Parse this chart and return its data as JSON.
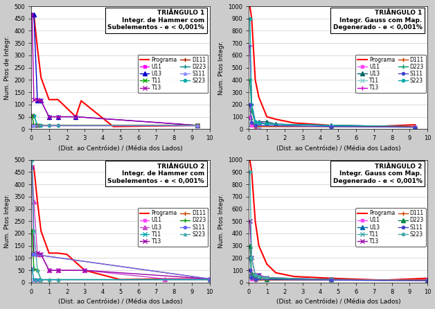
{
  "subplots": [
    {
      "title": "TRIÂNGULO 1\nIntegr. de Hammer com\nSubelementos - e < 0,001%",
      "ylabel": "Num. Ptos de Integr.",
      "xlabel": "(Dist. ao Centróide) / (Média dos Lados)",
      "ylim": [
        0,
        500
      ],
      "yticks": [
        0,
        50,
        100,
        150,
        200,
        250,
        300,
        350,
        400,
        450,
        500
      ],
      "xlim": [
        0,
        10
      ],
      "xticks": [
        0,
        1,
        2,
        3,
        4,
        5,
        6,
        7,
        8,
        9,
        10
      ],
      "series": [
        {
          "name": "Programa",
          "x": [
            0.05,
            0.15,
            0.35,
            0.55,
            1.0,
            1.5,
            2.5,
            2.8,
            4.6,
            9.3
          ],
          "y": [
            465,
            465,
            330,
            210,
            120,
            120,
            50,
            115,
            10,
            15
          ],
          "color": "#ff0000",
          "marker": null,
          "ms": 3,
          "lw": 1.5
        },
        {
          "name": "U13",
          "x": [
            0.05,
            0.15,
            0.35,
            0.55,
            1.0,
            1.5,
            2.5,
            9.3
          ],
          "y": [
            465,
            465,
            115,
            115,
            50,
            50,
            50,
            15
          ],
          "color": "#0000cc",
          "marker": "^",
          "ms": 4,
          "lw": 1.0
        },
        {
          "name": "T13",
          "x": [
            0.05,
            0.15,
            0.35,
            0.55,
            1.0,
            1.5,
            2.5,
            9.3
          ],
          "y": [
            465,
            120,
            120,
            115,
            50,
            50,
            50,
            15
          ],
          "color": "#aa00aa",
          "marker": "x",
          "ms": 4,
          "lw": 1.0
        },
        {
          "name": "D223",
          "x": [
            0.05,
            0.15,
            0.35,
            0.55,
            1.0,
            1.5,
            9.3
          ],
          "y": [
            55,
            55,
            15,
            15,
            15,
            15,
            15
          ],
          "color": "#008888",
          "marker": "+",
          "ms": 5,
          "lw": 1.0
        },
        {
          "name": "S223",
          "x": [
            0.05,
            0.15,
            0.35,
            0.55,
            1.0,
            1.5,
            9.3
          ],
          "y": [
            55,
            55,
            15,
            15,
            15,
            15,
            15
          ],
          "color": "#00aaaa",
          "marker": "o",
          "ms": 3,
          "lw": 1.0
        },
        {
          "name": "U11",
          "x": [
            0.05,
            0.15,
            0.35,
            9.3
          ],
          "y": [
            55,
            15,
            15,
            15
          ],
          "color": "#ff00ff",
          "marker": "s",
          "ms": 3,
          "lw": 1.0
        },
        {
          "name": "T11",
          "x": [
            0.05,
            0.15,
            0.35,
            9.3
          ],
          "y": [
            55,
            15,
            15,
            15
          ],
          "color": "#00aa00",
          "marker": "x",
          "ms": 4,
          "lw": 1.0
        },
        {
          "name": "D111",
          "x": [
            0.05,
            0.15,
            9.3
          ],
          "y": [
            15,
            15,
            15
          ],
          "color": "#aa2200",
          "marker": "+",
          "ms": 5,
          "lw": 1.0
        },
        {
          "name": "S111",
          "x": [
            0.05,
            0.15,
            9.3
          ],
          "y": [
            15,
            15,
            15
          ],
          "color": "#8888ff",
          "marker": "^",
          "ms": 3,
          "lw": 1.0
        }
      ],
      "legend_order": [
        "Programa",
        "U11",
        "U13",
        "T11",
        "T13",
        "D111",
        "D223",
        "S111",
        "S223"
      ]
    },
    {
      "title": "TRIÂNGULO 1\nIntegr. Gauss com Map.\nDegenerado - e < 0,001%",
      "ylabel": "Num. Ptos Integr.",
      "xlabel": "(Dist. ao Centróide) / (Média dos Lados)",
      "ylim": [
        0,
        1000
      ],
      "yticks": [
        0,
        100,
        200,
        300,
        400,
        500,
        600,
        700,
        800,
        900,
        1000
      ],
      "xlim": [
        0,
        10
      ],
      "xticks": [
        0,
        1,
        2,
        3,
        4,
        5,
        6,
        7,
        8,
        9,
        10
      ],
      "series": [
        {
          "name": "Programa",
          "x": [
            0.05,
            0.15,
            0.35,
            0.55,
            1.0,
            1.5,
            2.5,
            4.6,
            7.0,
            9.3
          ],
          "y": [
            1000,
            900,
            400,
            260,
            100,
            80,
            50,
            30,
            20,
            35
          ],
          "color": "#ff0000",
          "marker": null,
          "ms": 3,
          "lw": 1.5
        },
        {
          "name": "U13",
          "x": [
            0.05,
            0.15,
            0.35,
            0.55,
            1.0,
            1.5,
            4.6,
            9.3
          ],
          "y": [
            100,
            40,
            40,
            60,
            60,
            40,
            30,
            20
          ],
          "color": "#006666",
          "marker": "^",
          "ms": 4,
          "lw": 1.0
        },
        {
          "name": "T13",
          "x": [
            0.05,
            0.15,
            0.35,
            0.55,
            1.0,
            4.6,
            9.3
          ],
          "y": [
            680,
            200,
            60,
            60,
            40,
            30,
            20
          ],
          "color": "#cc00cc",
          "marker": "+",
          "ms": 5,
          "lw": 1.0
        },
        {
          "name": "D223",
          "x": [
            0.05,
            0.15,
            0.35,
            0.55,
            1.0,
            4.6,
            9.3
          ],
          "y": [
            400,
            150,
            50,
            50,
            40,
            30,
            20
          ],
          "color": "#009966",
          "marker": "+",
          "ms": 5,
          "lw": 1.0
        },
        {
          "name": "S223",
          "x": [
            0.05,
            0.15,
            0.35,
            0.55,
            1.0,
            4.6,
            9.3
          ],
          "y": [
            900,
            200,
            60,
            50,
            40,
            30,
            20
          ],
          "color": "#00aaaa",
          "marker": "o",
          "ms": 3,
          "lw": 1.0
        },
        {
          "name": "U11",
          "x": [
            0.05,
            0.15,
            0.35,
            0.55,
            4.6,
            9.3
          ],
          "y": [
            100,
            30,
            20,
            20,
            20,
            20
          ],
          "color": "#ff44ff",
          "marker": "s",
          "ms": 3,
          "lw": 1.0
        },
        {
          "name": "T11",
          "x": [
            0.05,
            0.15,
            0.35,
            0.55,
            4.6,
            9.3
          ],
          "y": [
            200,
            60,
            30,
            20,
            20,
            15
          ],
          "color": "#88cccc",
          "marker": "x",
          "ms": 4,
          "lw": 1.0
        },
        {
          "name": "D111",
          "x": [
            0.05,
            0.15,
            0.35,
            4.6,
            9.3
          ],
          "y": [
            200,
            50,
            20,
            20,
            20
          ],
          "color": "#cc4400",
          "marker": "+",
          "ms": 5,
          "lw": 1.0
        },
        {
          "name": "S111",
          "x": [
            0.05,
            0.15,
            0.35,
            4.6,
            9.3
          ],
          "y": [
            200,
            50,
            30,
            20,
            15
          ],
          "color": "#4444cc",
          "marker": "o",
          "ms": 3,
          "lw": 1.0
        }
      ],
      "legend_order": [
        "Programa",
        "U11",
        "U13",
        "T11",
        "T13",
        "D111",
        "D223",
        "S111",
        "S223"
      ]
    },
    {
      "title": "TRIÂNGULO 2\nIntegr. de Hammer com\nSubelementos - e < 0,001%",
      "ylabel": "Num. Ptos Integr.",
      "xlabel": "(Dist. ao Centróide) / (Média dos Lados)",
      "ylim": [
        0,
        500
      ],
      "yticks": [
        0,
        50,
        100,
        150,
        200,
        250,
        300,
        350,
        400,
        450,
        500
      ],
      "xlim": [
        0,
        10
      ],
      "xticks": [
        0,
        1,
        2,
        3,
        4,
        5,
        6,
        7,
        8,
        9,
        10
      ],
      "series": [
        {
          "name": "Programa",
          "x": [
            0.05,
            0.15,
            0.35,
            0.55,
            1.0,
            1.5,
            2.0,
            3.0,
            5.0,
            7.5,
            10.0
          ],
          "y": [
            470,
            470,
            330,
            210,
            120,
            120,
            115,
            50,
            12,
            15,
            15
          ],
          "color": "#ff0000",
          "marker": null,
          "ms": 3,
          "lw": 1.5
        },
        {
          "name": "U13",
          "x": [
            0.05,
            0.15,
            0.35,
            0.55,
            1.0,
            1.5,
            3.0,
            7.5,
            10.0
          ],
          "y": [
            470,
            330,
            115,
            115,
            50,
            50,
            50,
            15,
            15
          ],
          "color": "#cc44cc",
          "marker": "^",
          "ms": 4,
          "lw": 1.0
        },
        {
          "name": "T13",
          "x": [
            0.05,
            0.15,
            0.35,
            0.55,
            1.0,
            1.5,
            3.0,
            10.0
          ],
          "y": [
            470,
            120,
            120,
            115,
            50,
            50,
            50,
            15
          ],
          "color": "#9900aa",
          "marker": "x",
          "ms": 4,
          "lw": 1.0
        },
        {
          "name": "D223",
          "x": [
            0.05,
            0.15,
            0.35,
            0.55,
            1.0,
            1.5,
            10.0
          ],
          "y": [
            210,
            55,
            50,
            12,
            12,
            12,
            12
          ],
          "color": "#009900",
          "marker": "+",
          "ms": 5,
          "lw": 1.0
        },
        {
          "name": "S223",
          "x": [
            0.05,
            0.15,
            0.35,
            0.55,
            1.0,
            1.5,
            10.0
          ],
          "y": [
            500,
            210,
            50,
            12,
            12,
            12,
            12
          ],
          "color": "#44aaaa",
          "marker": "^",
          "ms": 3,
          "lw": 1.0
        },
        {
          "name": "U11",
          "x": [
            0.05,
            0.15,
            0.35,
            10.0
          ],
          "y": [
            55,
            12,
            12,
            12
          ],
          "color": "#ff44ff",
          "ms": 3,
          "marker": "s",
          "lw": 1.0
        },
        {
          "name": "T11",
          "x": [
            0.05,
            0.15,
            0.35,
            10.0
          ],
          "y": [
            55,
            12,
            12,
            12
          ],
          "color": "#00aaaa",
          "marker": "x",
          "ms": 4,
          "lw": 1.0
        },
        {
          "name": "D111",
          "x": [
            0.05,
            0.15,
            10.0
          ],
          "y": [
            115,
            115,
            15
          ],
          "color": "#cc4400",
          "marker": "+",
          "ms": 5,
          "lw": 1.0
        },
        {
          "name": "S111",
          "x": [
            0.05,
            0.15,
            10.0
          ],
          "y": [
            115,
            115,
            15
          ],
          "color": "#6666ff",
          "marker": "o",
          "ms": 3,
          "lw": 1.0
        }
      ],
      "legend_order": [
        "Programa",
        "U11",
        "U13",
        "T11",
        "T13",
        "D111",
        "D223",
        "S111",
        "S223"
      ]
    },
    {
      "title": "TRIÂNGULO 2\nIntegr. Gauss com Map.\nDegenerado - e < 0,001%",
      "ylabel": "Num. Ptos Integr.",
      "xlabel": "(Dist. ao Centróide) / (Média dos Lados)",
      "ylim": [
        0,
        1000
      ],
      "yticks": [
        0,
        100,
        200,
        300,
        400,
        500,
        600,
        700,
        800,
        900,
        1000
      ],
      "xlim": [
        0,
        10
      ],
      "xticks": [
        0,
        1,
        2,
        3,
        4,
        5,
        6,
        7,
        8,
        9,
        10
      ],
      "series": [
        {
          "name": "Programa",
          "x": [
            0.05,
            0.15,
            0.35,
            0.55,
            1.0,
            1.5,
            2.5,
            4.6,
            7.5,
            10.0
          ],
          "y": [
            1000,
            900,
            500,
            300,
            150,
            80,
            50,
            35,
            20,
            35
          ],
          "color": "#ff0000",
          "marker": null,
          "ms": 3,
          "lw": 1.5
        },
        {
          "name": "U13",
          "x": [
            0.05,
            0.15,
            0.35,
            0.55,
            1.0,
            4.6,
            10.0
          ],
          "y": [
            200,
            60,
            60,
            60,
            40,
            25,
            20
          ],
          "color": "#0066aa",
          "marker": "^",
          "ms": 4,
          "lw": 1.0
        },
        {
          "name": "T13",
          "x": [
            0.05,
            0.15,
            0.35,
            0.55,
            1.0,
            4.6,
            10.0
          ],
          "y": [
            500,
            200,
            60,
            60,
            40,
            25,
            20
          ],
          "color": "#9900aa",
          "marker": "x",
          "ms": 4,
          "lw": 1.0
        },
        {
          "name": "D223",
          "x": [
            0.05,
            0.15,
            0.35,
            0.55,
            1.0,
            4.6,
            10.0
          ],
          "y": [
            300,
            80,
            40,
            40,
            30,
            25,
            20
          ],
          "color": "#008844",
          "marker": "^",
          "ms": 4,
          "lw": 1.0
        },
        {
          "name": "S223",
          "x": [
            0.05,
            0.15,
            0.35,
            0.55,
            1.0,
            4.6,
            10.0
          ],
          "y": [
            900,
            200,
            60,
            50,
            40,
            25,
            20
          ],
          "color": "#44aaaa",
          "marker": "o",
          "ms": 3,
          "lw": 1.0
        },
        {
          "name": "U11",
          "x": [
            0.05,
            0.15,
            0.35,
            4.6,
            10.0
          ],
          "y": [
            100,
            30,
            20,
            20,
            20
          ],
          "color": "#ff44ff",
          "marker": "s",
          "ms": 3,
          "lw": 1.0
        },
        {
          "name": "T11",
          "x": [
            0.05,
            0.15,
            0.35,
            4.6,
            10.0
          ],
          "y": [
            200,
            50,
            25,
            20,
            15
          ],
          "color": "#44aaaa",
          "marker": "x",
          "ms": 4,
          "lw": 1.0
        },
        {
          "name": "D111",
          "x": [
            0.05,
            0.15,
            0.35,
            4.6,
            10.0
          ],
          "y": [
            100,
            40,
            20,
            20,
            20
          ],
          "color": "#cc4400",
          "marker": "+",
          "ms": 5,
          "lw": 1.0
        },
        {
          "name": "S111",
          "x": [
            0.05,
            0.15,
            0.35,
            4.6,
            10.0
          ],
          "y": [
            100,
            40,
            25,
            20,
            15
          ],
          "color": "#4444cc",
          "marker": "o",
          "ms": 3,
          "lw": 1.0
        }
      ],
      "legend_order": [
        "Programa",
        "U11",
        "U13",
        "T11",
        "T13",
        "D111",
        "D223",
        "S111",
        "S223"
      ]
    }
  ],
  "background_color": "#ffffff",
  "fig_facecolor": "#cccccc"
}
